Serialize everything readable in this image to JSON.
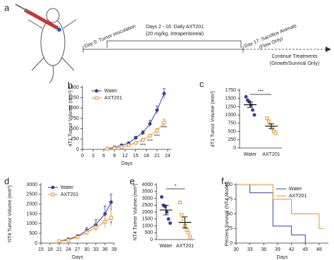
{
  "schematic": {
    "panel": "a",
    "day0": "Day 0: Tumor Inoculation",
    "treatment": "Days 2 - 16: Daily AXT201",
    "dose": "(20 mg/kg, Intraperitoneal)",
    "day17": "Day 17: Sacrifice Animals",
    "day17_note": "(Flow Only)",
    "continue": "Continue Treatments",
    "continue_note": "(Growth/Survival Only)"
  },
  "chart_data": [
    {
      "type": "line",
      "panel": "b",
      "x_label": "Days",
      "y_label": "4T1 Tumor Volume (mm³)",
      "x": [
        7,
        9,
        11,
        13,
        15,
        17,
        19,
        21,
        23
      ],
      "xlim": [
        0,
        25
      ],
      "xticks": [
        0,
        3,
        6,
        9,
        12,
        15,
        18,
        21,
        24
      ],
      "ylim": [
        0,
        1500
      ],
      "yticks": [
        0,
        250,
        500,
        750,
        1000,
        1250,
        1500
      ],
      "series": [
        {
          "name": "Water",
          "color": "#3b3f9e",
          "marker": "circle",
          "values": [
            20,
            50,
            100,
            150,
            280,
            400,
            620,
            950,
            1350
          ],
          "errors": [
            5,
            10,
            15,
            25,
            40,
            50,
            80,
            100,
            120
          ]
        },
        {
          "name": "AXT201",
          "color": "#e8922a",
          "marker": "square",
          "values": [
            15,
            30,
            60,
            100,
            160,
            230,
            330,
            450,
            650
          ],
          "errors": [
            5,
            8,
            10,
            15,
            20,
            30,
            40,
            50,
            80
          ],
          "value_notes": [
            null,
            null,
            null,
            null,
            null,
            "***",
            "***",
            "***",
            "***"
          ]
        }
      ]
    },
    {
      "type": "dot",
      "panel": "c",
      "y_label": "4T1 Tumor Volume (mm³)",
      "categories": [
        "Water",
        "AXT201"
      ],
      "ylim": [
        0,
        1750
      ],
      "yticks": [
        0,
        250,
        500,
        750,
        1000,
        1250,
        1500,
        1750
      ],
      "significance": "***",
      "groups": [
        {
          "color": "#3b3f9e",
          "marker": "circle",
          "values": [
            1550,
            1450,
            1400,
            1300,
            1150,
            1000
          ],
          "mean": 1310,
          "sem": 80
        },
        {
          "color": "#e8922a",
          "marker": "square",
          "values": [
            900,
            800,
            700,
            600,
            500,
            450
          ],
          "mean": 660,
          "sem": 70
        }
      ]
    },
    {
      "type": "line",
      "panel": "d",
      "x_label": "Days",
      "y_label": "NT4 Tumor Volume (mm³)",
      "x": [
        21,
        24,
        27,
        30,
        33,
        36,
        38
      ],
      "xlim": [
        15,
        39
      ],
      "xticks": [
        15,
        18,
        21,
        24,
        27,
        30,
        33,
        36,
        39
      ],
      "ylim": [
        0,
        3000
      ],
      "yticks": [
        0,
        500,
        1000,
        1500,
        2000,
        2500,
        3000
      ],
      "series": [
        {
          "name": "Water",
          "color": "#3b3f9e",
          "marker": "circle",
          "values": [
            100,
            200,
            350,
            650,
            950,
            1500,
            2100
          ],
          "errors": [
            30,
            50,
            80,
            150,
            250,
            400,
            400
          ]
        },
        {
          "name": "AXT201",
          "color": "#e8922a",
          "marker": "square",
          "values": [
            100,
            150,
            300,
            550,
            800,
            1100,
            1300
          ],
          "errors": [
            30,
            40,
            70,
            120,
            200,
            300,
            400
          ],
          "value_notes": [
            null,
            null,
            null,
            null,
            null,
            null,
            "*"
          ]
        }
      ]
    },
    {
      "type": "dot",
      "panel": "e",
      "y_label": "NT4 Tumor Volume (mm³)",
      "categories": [
        "Water",
        "AXT201"
      ],
      "ylim": [
        0,
        4000
      ],
      "yticks": [
        0,
        500,
        1000,
        1500,
        2000,
        2500,
        3000,
        3500,
        4000
      ],
      "significance": "*",
      "groups": [
        {
          "color": "#3b3f9e",
          "marker": "circle",
          "values": [
            3100,
            2500,
            2400,
            2000,
            1500,
            1200
          ],
          "mean": 2150,
          "sem": 350
        },
        {
          "color": "#e8922a",
          "marker": "square",
          "values": [
            2700,
            1800,
            1500,
            1000,
            700,
            500,
            200
          ],
          "mean": 1250,
          "sem": 400
        }
      ]
    },
    {
      "type": "step",
      "panel": "f",
      "x_label": "Days",
      "y_label": "Percent Survival (NT4 Model)",
      "xlim": [
        30,
        50
      ],
      "xticks": [
        30,
        33,
        36,
        39,
        42,
        45,
        48
      ],
      "ylim": [
        0,
        100
      ],
      "yticks": [
        0,
        25,
        50,
        75,
        100
      ],
      "series": [
        {
          "name": "Water",
          "color": "#3b3f9e",
          "x": [
            30,
            33,
            38,
            42,
            45
          ],
          "values": [
            100,
            86,
            29,
            14,
            0
          ]
        },
        {
          "name": "AXT201",
          "color": "#e8922a",
          "x": [
            30,
            38,
            42,
            48,
            49
          ],
          "values": [
            100,
            75,
            50,
            25,
            25
          ]
        }
      ]
    }
  ]
}
